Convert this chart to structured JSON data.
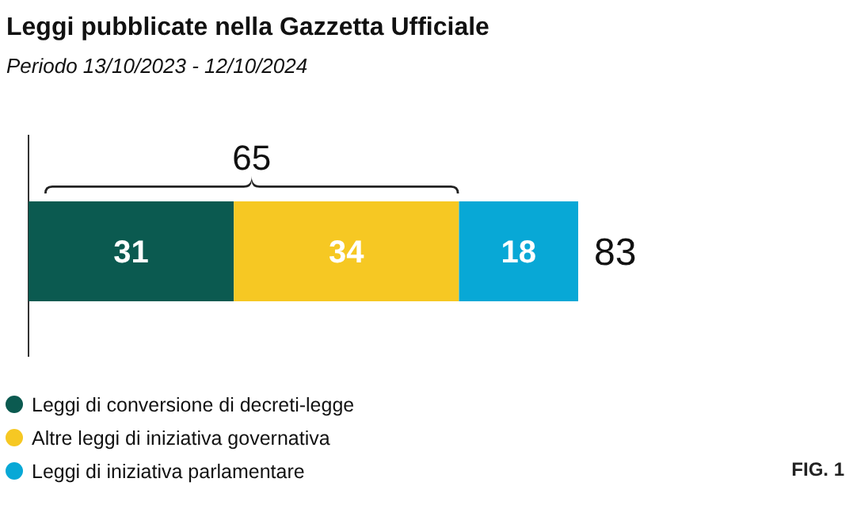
{
  "chart_data": {
    "type": "bar",
    "orientation": "horizontal",
    "stacked": true,
    "title": "Leggi pubblicate nella Gazzetta Ufficiale",
    "subtitle": "Periodo 13/10/2023 - 12/10/2024",
    "categories": [
      null
    ],
    "series": [
      {
        "name": "Leggi di conversione di decreti-legge",
        "color": "#0b5a50",
        "values": [
          31
        ]
      },
      {
        "name": "Altre leggi di iniziativa governativa",
        "color": "#f6c823",
        "values": [
          34
        ]
      },
      {
        "name": "Leggi di iniziativa parlamentare",
        "color": "#08a8d6",
        "values": [
          18
        ]
      }
    ],
    "data_labels": true,
    "totals": [
      "83"
    ],
    "legend": "bottom left",
    "annotations": [
      "65",
      "FIG. 1"
    ]
  }
}
